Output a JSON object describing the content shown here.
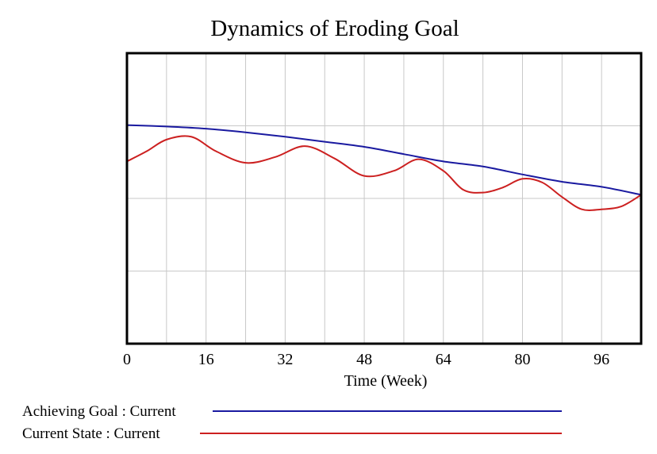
{
  "chart_data": {
    "type": "line",
    "title": "Dynamics of Eroding Goal",
    "xlabel": "Time (Week)",
    "ylabel": "",
    "xlim": [
      0,
      104
    ],
    "ylim": [
      0,
      4
    ],
    "x_ticks": [
      0,
      16,
      32,
      48,
      64,
      80,
      96
    ],
    "x_grid_step": 8,
    "y_grid_step": 1,
    "grid": true,
    "legend_position": "bottom-left",
    "series": [
      {
        "name": "Achieving Goal : Current",
        "color": "#1a1aa0",
        "x": [
          0,
          8,
          16,
          24,
          32,
          40,
          48,
          56,
          64,
          72,
          80,
          88,
          96,
          104
        ],
        "y": [
          3.01,
          2.99,
          2.96,
          2.91,
          2.85,
          2.78,
          2.71,
          2.61,
          2.51,
          2.44,
          2.33,
          2.23,
          2.16,
          2.05
        ]
      },
      {
        "name": "Current State : Current",
        "color": "#cc2020",
        "x": [
          0,
          4,
          8,
          13,
          18,
          24,
          30,
          36,
          42,
          48,
          54,
          59,
          64,
          68,
          72,
          76,
          80,
          84,
          88,
          92,
          96,
          100,
          104
        ],
        "y": [
          2.51,
          2.65,
          2.81,
          2.85,
          2.65,
          2.49,
          2.57,
          2.72,
          2.55,
          2.31,
          2.38,
          2.54,
          2.38,
          2.12,
          2.08,
          2.15,
          2.27,
          2.22,
          2.02,
          1.85,
          1.85,
          1.89,
          2.05
        ]
      }
    ]
  }
}
